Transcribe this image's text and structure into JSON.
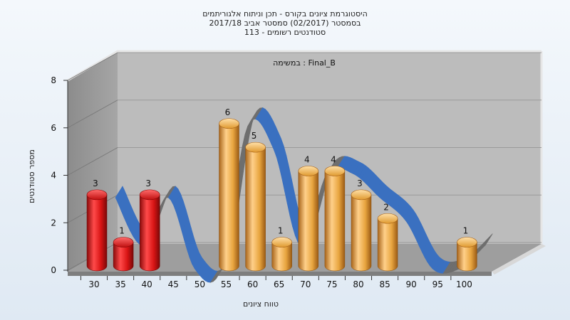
{
  "chart_data": {
    "type": "bar",
    "title_lines": [
      "היסטוגרמת ציונים בקורס - תכן וניתוח אלגוריתמים",
      "בסמסטר  (02/2017)  סמסטר אביב 2017/18",
      "סטודנטים רשומים - 113"
    ],
    "subtitle": "במשימה : Final_B",
    "xlabel": "טווח ציונים",
    "ylabel": "מספר סטודנטים",
    "ylim": [
      0,
      8
    ],
    "yticks": [
      0,
      2,
      4,
      6,
      8
    ],
    "categories": [
      "30",
      "35",
      "40",
      "45",
      "50",
      "55",
      "60",
      "65",
      "70",
      "75",
      "80",
      "85",
      "90",
      "95",
      "100"
    ],
    "values": [
      3,
      1,
      3,
      0,
      0,
      6,
      5,
      1,
      4,
      4,
      3,
      2,
      0,
      0,
      1
    ],
    "bar_colors": [
      "#e01a1a",
      "#e01a1a",
      "#e01a1a",
      "#e01a1a",
      "#e8a53f",
      "#e8a53f",
      "#e8a53f",
      "#e8a53f",
      "#e8a53f",
      "#e8a53f",
      "#e8a53f",
      "#e8a53f",
      "#e8a53f",
      "#e8a53f",
      "#e8a53f"
    ],
    "grid": true,
    "trend_ribbon": {
      "color_front": "#3a70c0",
      "color_back": "#6e6e6e"
    }
  }
}
